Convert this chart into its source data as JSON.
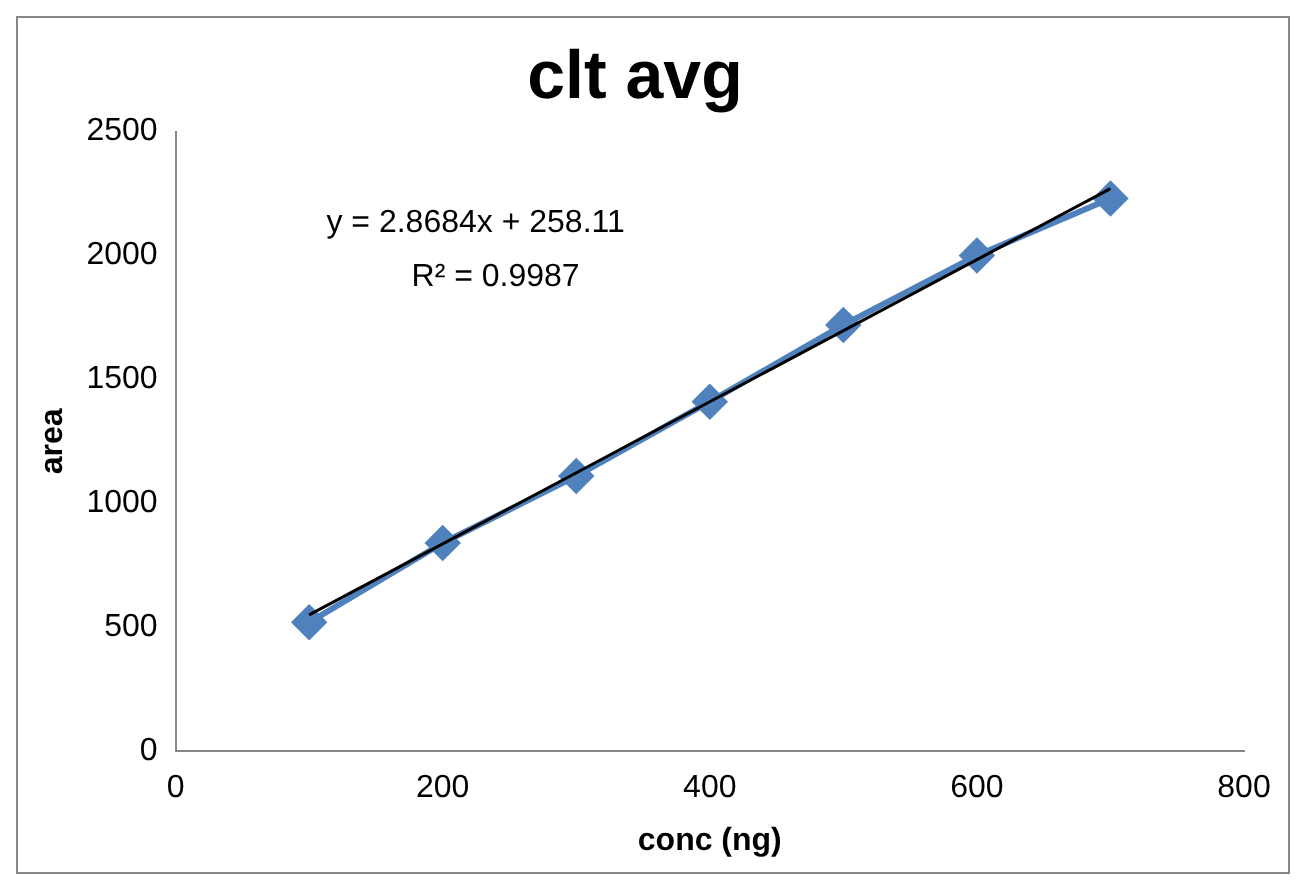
{
  "chart_data": {
    "type": "line",
    "title": "clt avg",
    "xlabel": "conc (ng)",
    "ylabel": "area",
    "xlim": [
      0,
      800
    ],
    "xticks": [
      0,
      200,
      400,
      600,
      800
    ],
    "ylim": [
      0,
      2500
    ],
    "yticks": [
      0,
      500,
      1000,
      1500,
      2000,
      2500
    ],
    "grid": false,
    "legend": false,
    "marker": "diamond",
    "line_style": "solid",
    "annotations": [
      "y = 2.8684x + 258.11",
      "R² = 0.9987"
    ],
    "series": [
      {
        "color": "#4f81bd",
        "x": [
          100,
          200,
          300,
          400,
          500,
          600,
          700
        ],
        "values": [
          520,
          840,
          1110,
          1410,
          1720,
          2000,
          2230
        ]
      },
      {
        "color": "#000000",
        "marker": "none",
        "x": [
          100,
          700
        ],
        "values": [
          550,
          2270
        ]
      }
    ]
  }
}
